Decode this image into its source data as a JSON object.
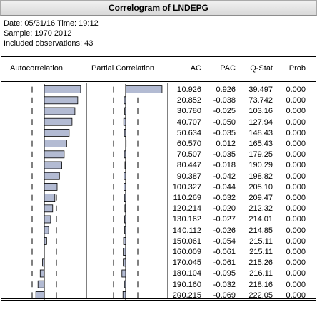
{
  "window": {
    "title": "Correlogram of LNDEPG"
  },
  "info": {
    "date_line": "Date: 05/31/16   Time: 19:12",
    "sample_line": "Sample: 1970 2012",
    "obs_line": "Included observations: 43"
  },
  "table": {
    "headers": {
      "autocorrelation": "Autocorrelation",
      "partial_correlation": "Partial Correlation",
      "ac": "AC",
      "pac": "PAC",
      "qstat": "Q-Stat",
      "prob": "Prob"
    },
    "rows": [
      {
        "lag": "1",
        "ac": "0.926",
        "pac": "0.926",
        "q": "39.497",
        "prob": "0.000"
      },
      {
        "lag": "2",
        "ac": "0.852",
        "pac": "-0.038",
        "q": "73.742",
        "prob": "0.000"
      },
      {
        "lag": "3",
        "ac": "0.780",
        "pac": "-0.025",
        "q": "103.16",
        "prob": "0.000"
      },
      {
        "lag": "4",
        "ac": "0.707",
        "pac": "-0.050",
        "q": "127.94",
        "prob": "0.000"
      },
      {
        "lag": "5",
        "ac": "0.634",
        "pac": "-0.035",
        "q": "148.43",
        "prob": "0.000"
      },
      {
        "lag": "6",
        "ac": "0.570",
        "pac": "0.012",
        "q": "165.43",
        "prob": "0.000"
      },
      {
        "lag": "7",
        "ac": "0.507",
        "pac": "-0.035",
        "q": "179.25",
        "prob": "0.000"
      },
      {
        "lag": "8",
        "ac": "0.447",
        "pac": "-0.018",
        "q": "190.29",
        "prob": "0.000"
      },
      {
        "lag": "9",
        "ac": "0.387",
        "pac": "-0.042",
        "q": "198.82",
        "prob": "0.000"
      },
      {
        "lag": "10",
        "ac": "0.327",
        "pac": "-0.044",
        "q": "205.10",
        "prob": "0.000"
      },
      {
        "lag": "11",
        "ac": "0.269",
        "pac": "-0.032",
        "q": "209.47",
        "prob": "0.000"
      },
      {
        "lag": "12",
        "ac": "0.214",
        "pac": "-0.020",
        "q": "212.32",
        "prob": "0.000"
      },
      {
        "lag": "13",
        "ac": "0.162",
        "pac": "-0.027",
        "q": "214.01",
        "prob": "0.000"
      },
      {
        "lag": "14",
        "ac": "0.112",
        "pac": "-0.026",
        "q": "214.85",
        "prob": "0.000"
      },
      {
        "lag": "15",
        "ac": "0.061",
        "pac": "-0.054",
        "q": "215.11",
        "prob": "0.000"
      },
      {
        "lag": "16",
        "ac": "0.009",
        "pac": "-0.061",
        "q": "215.11",
        "prob": "0.000"
      },
      {
        "lag": "17",
        "ac": "-0.045",
        "pac": "-0.061",
        "q": "215.26",
        "prob": "0.000"
      },
      {
        "lag": "18",
        "ac": "-0.104",
        "pac": "-0.095",
        "q": "216.11",
        "prob": "0.000"
      },
      {
        "lag": "19",
        "ac": "-0.160",
        "pac": "-0.032",
        "q": "218.16",
        "prob": "0.000"
      },
      {
        "lag": "20",
        "ac": "-0.215",
        "pac": "-0.069",
        "q": "222.05",
        "prob": "0.000"
      }
    ]
  },
  "colors": {
    "bar_fill": "#b3bbd3",
    "bar_stroke": "#000000",
    "titlebar": "#e4e4e4"
  }
}
